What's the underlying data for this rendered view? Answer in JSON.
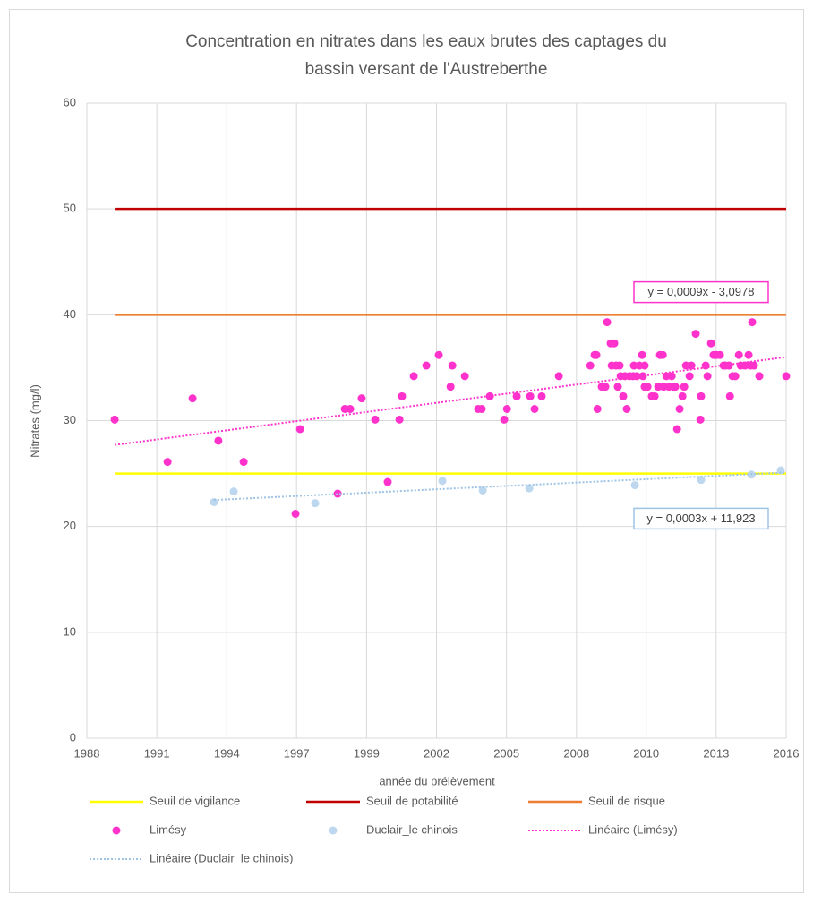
{
  "chart_data": {
    "type": "scatter",
    "title": "Concentration en nitrates dans les eaux brutes des captages du",
    "title_line2": "bassin versant de l'Austreberthe",
    "x_label": "année du prélèvement",
    "y_label": "Nitrates (mg/l)",
    "xlim": [
      1988.95,
      2016.33
    ],
    "xticks": [
      {
        "value": 1988.95,
        "label": "1988"
      },
      {
        "value": 1991.69,
        "label": "1991"
      },
      {
        "value": 1994.43,
        "label": "1994"
      },
      {
        "value": 1997.16,
        "label": "1997"
      },
      {
        "value": 1999.9,
        "label": "1999"
      },
      {
        "value": 2002.64,
        "label": "2002"
      },
      {
        "value": 2005.38,
        "label": "2005"
      },
      {
        "value": 2008.12,
        "label": "2008"
      },
      {
        "value": 2010.85,
        "label": "2010"
      },
      {
        "value": 2013.59,
        "label": "2013"
      },
      {
        "value": 2016.33,
        "label": "2016"
      }
    ],
    "ylim": [
      0,
      60
    ],
    "yticks": [
      0,
      10,
      20,
      30,
      40,
      50,
      60
    ],
    "grid": true,
    "legend": "bottom",
    "series": [
      {
        "name": "Seuil de vigilance",
        "color": "#ffff00",
        "style": "solid",
        "x": [
          1990.04,
          2016.33
        ],
        "values": [
          25,
          25
        ]
      },
      {
        "name": "Seuil de potabilité",
        "color": "#c00000",
        "style": "solid",
        "x": [
          1990.04,
          2016.33
        ],
        "values": [
          50,
          50
        ]
      },
      {
        "name": "Seuil de risque",
        "color": "#ed7d31",
        "style": "solid",
        "x": [
          1990.04,
          2016.33
        ],
        "values": [
          40,
          40
        ]
      },
      {
        "name": "Limésy",
        "color": "#ff33cc",
        "style": "markers",
        "x": [
          1990.04,
          1992.11,
          1993.09,
          1994.1,
          1995.09,
          1997.12,
          1997.3,
          1999.05,
          1999.26,
          1998.77,
          1999.71,
          2000.24,
          2000.73,
          2001.19,
          2001.29,
          2001.75,
          2002.24,
          2002.73,
          2003.19,
          2003.26,
          2003.75,
          2004.27,
          2004.41,
          2004.73,
          2005.29,
          2005.4,
          2005.78,
          2006.31,
          2006.48,
          2006.76,
          2007.43,
          2008.66,
          2008.83,
          2008.9,
          2008.94,
          2009.11,
          2009.25,
          2009.32,
          2009.46,
          2009.6,
          2009.5,
          2009.67,
          2009.74,
          2009.81,
          2009.85,
          2009.95,
          2010.02,
          2010.09,
          2010.2,
          2010.34,
          2010.37,
          2010.48,
          2010.58,
          2010.69,
          2010.72,
          2010.79,
          2010.79,
          2010.9,
          2011.07,
          2011.18,
          2011.32,
          2011.39,
          2011.5,
          2011.53,
          2011.64,
          2011.74,
          2011.85,
          2011.92,
          2011.99,
          2012.06,
          2012.16,
          2012.27,
          2012.34,
          2012.41,
          2012.55,
          2012.62,
          2012.79,
          2012.97,
          2013.0,
          2013.18,
          2013.25,
          2013.39,
          2013.49,
          2013.6,
          2013.74,
          2013.88,
          2013.95,
          2014.09,
          2014.13,
          2014.23,
          2014.34,
          2014.48,
          2014.55,
          2014.72,
          2014.86,
          2014.93,
          2015.0,
          2015.07,
          2015.28,
          2016.33
        ],
        "values": [
          30.1,
          26.1,
          32.1,
          28.1,
          26.1,
          21.2,
          29.2,
          31.1,
          31.1,
          23.1,
          32.1,
          30.1,
          24.2,
          30.1,
          32.3,
          34.2,
          35.2,
          36.2,
          33.2,
          35.2,
          34.2,
          31.1,
          31.1,
          32.3,
          30.1,
          31.1,
          32.3,
          32.3,
          31.1,
          32.3,
          34.2,
          35.2,
          36.2,
          36.2,
          31.1,
          33.2,
          33.2,
          39.3,
          37.3,
          37.3,
          35.2,
          35.2,
          33.2,
          35.2,
          34.2,
          32.3,
          34.2,
          31.1,
          34.2,
          34.2,
          35.2,
          34.2,
          35.2,
          36.2,
          34.2,
          33.2,
          35.2,
          33.2,
          32.3,
          32.3,
          33.2,
          36.2,
          36.2,
          33.2,
          34.2,
          33.2,
          34.2,
          33.2,
          33.2,
          29.2,
          31.1,
          32.3,
          33.2,
          35.2,
          34.2,
          35.2,
          38.2,
          30.1,
          32.3,
          35.2,
          34.2,
          37.3,
          36.2,
          36.2,
          36.2,
          35.2,
          35.2,
          35.2,
          32.3,
          34.2,
          34.2,
          36.2,
          35.2,
          35.2,
          36.2,
          35.2,
          39.3,
          35.2,
          34.2,
          34.2
        ]
      },
      {
        "name": "Duclair_le chinois",
        "color": "#bdd7ee",
        "style": "markers",
        "x": [
          1993.93,
          1994.7,
          1997.89,
          2002.87,
          2004.45,
          2006.27,
          2010.41,
          2013.0,
          2014.97,
          2016.12
        ],
        "values": [
          22.3,
          23.3,
          22.2,
          24.3,
          23.4,
          23.6,
          23.9,
          24.4,
          24.9,
          25.3
        ]
      },
      {
        "name": "Linéaire (Limésy)",
        "color": "#ff33cc",
        "style": "dotted",
        "x": [
          1990.04,
          2016.33
        ],
        "values": [
          27.7,
          36.0
        ],
        "equation": "y = 0,0009x - 3,0978"
      },
      {
        "name": "Linéaire (Duclair_le chinois)",
        "color": "#9dc3e6",
        "style": "dotted",
        "x": [
          1993.93,
          2016.33
        ],
        "values": [
          22.5,
          25.1
        ],
        "equation": "y = 0,0003x + 11,923"
      }
    ]
  }
}
